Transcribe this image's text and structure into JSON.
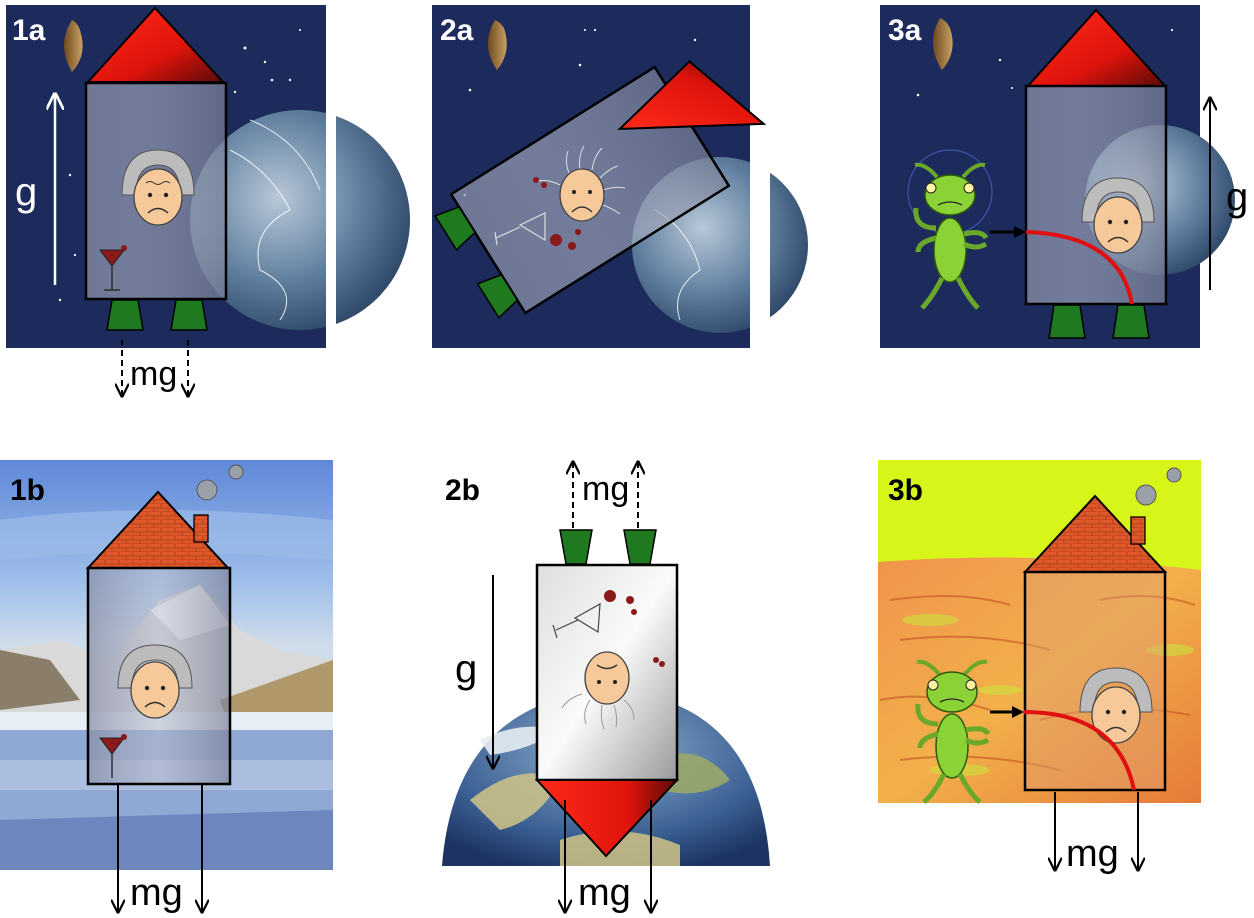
{
  "panels": {
    "p1a": {
      "label": "1a",
      "g_label": "g",
      "force_label": "mg"
    },
    "p2a": {
      "label": "2a"
    },
    "p3a": {
      "label": "3a",
      "g_label": "g"
    },
    "p1b": {
      "label": "1b",
      "force_label": "mg"
    },
    "p2b": {
      "label": "2b",
      "g_label": "g",
      "force_label_top": "mg",
      "force_label_bottom": "mg"
    },
    "p3b": {
      "label": "3b",
      "force_label": "mg"
    }
  },
  "colors": {
    "space": "#1c2a5c",
    "rocket_nose": "#e8150f",
    "nozzle": "#1f7a1f",
    "house_roof": "#e0582a",
    "sky_1b": "#6f9be6",
    "sky_3b": "#d8f51a",
    "alien": "#8bd236",
    "trajectory": "#e01010",
    "face": "#f5c99a"
  }
}
